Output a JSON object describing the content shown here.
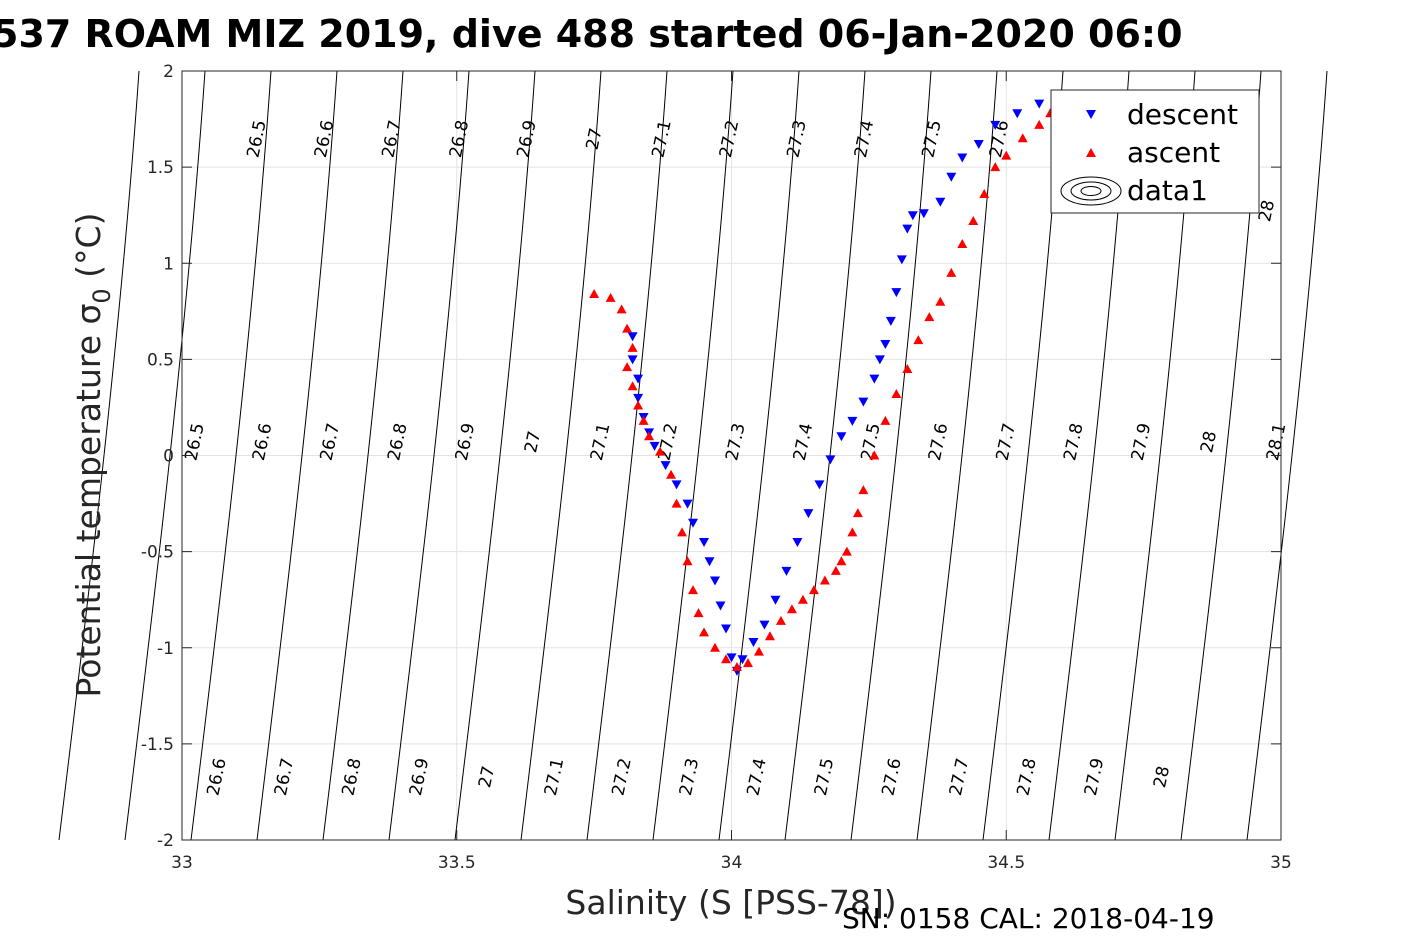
{
  "chart_data": {
    "type": "scatter",
    "title": "537 ROAM MIZ 2019, dive 488 started 06-Jan-2020 06:0",
    "xlabel": "Salinity (S [PSS-78])",
    "ylabel": "Potential temperature σ",
    "ylabel_subscript": "0",
    "ylabel_unit": " (°C)",
    "xlim": [
      33,
      35
    ],
    "ylim": [
      -2,
      2
    ],
    "xticks": [
      33,
      33.5,
      34,
      34.5,
      35
    ],
    "xtick_labels": [
      "33",
      "33.5",
      "34",
      "34.5",
      "35"
    ],
    "yticks": [
      -2,
      -1.5,
      -1,
      -0.5,
      0,
      0.5,
      1,
      1.5,
      2
    ],
    "ytick_labels": [
      "-2",
      "-1.5",
      "-1",
      "-0.5",
      "0",
      "0.5",
      "1",
      "1.5",
      "2"
    ],
    "grid": true,
    "legend_position": "top-right",
    "footer": "SN: 0158  CAL: 2018-04-19",
    "series": [
      {
        "name": "descent",
        "marker": "triangle-down",
        "color": "#0000ff",
        "x": [
          33.82,
          33.82,
          33.83,
          33.83,
          33.84,
          33.85,
          33.86,
          33.88,
          33.9,
          33.92,
          33.93,
          33.95,
          33.96,
          33.97,
          33.98,
          33.99,
          34.0,
          34.01,
          34.02,
          34.04,
          34.06,
          34.08,
          34.1,
          34.12,
          34.14,
          34.16,
          34.18,
          34.2,
          34.22,
          34.24,
          34.26,
          34.27,
          34.28,
          34.29,
          34.3,
          34.31,
          34.32,
          34.33,
          34.35,
          34.38,
          34.4,
          34.42,
          34.45,
          34.48,
          34.52,
          34.56,
          34.59
        ],
        "y": [
          0.62,
          0.5,
          0.4,
          0.3,
          0.2,
          0.12,
          0.05,
          -0.05,
          -0.15,
          -0.25,
          -0.35,
          -0.45,
          -0.55,
          -0.65,
          -0.78,
          -0.9,
          -1.05,
          -1.12,
          -1.06,
          -0.97,
          -0.88,
          -0.75,
          -0.6,
          -0.45,
          -0.3,
          -0.15,
          -0.02,
          0.1,
          0.18,
          0.28,
          0.4,
          0.5,
          0.58,
          0.7,
          0.85,
          1.02,
          1.18,
          1.25,
          1.26,
          1.32,
          1.45,
          1.55,
          1.62,
          1.72,
          1.78,
          1.83,
          1.86
        ]
      },
      {
        "name": "ascent",
        "marker": "triangle-up",
        "color": "#ff0000",
        "x": [
          33.75,
          33.78,
          33.8,
          33.81,
          33.82,
          33.81,
          33.82,
          33.83,
          33.84,
          33.85,
          33.87,
          33.89,
          33.9,
          33.91,
          33.92,
          33.93,
          33.94,
          33.95,
          33.97,
          33.99,
          34.01,
          34.03,
          34.05,
          34.07,
          34.09,
          34.11,
          34.13,
          34.15,
          34.17,
          34.19,
          34.2,
          34.21,
          34.22,
          34.23,
          34.24,
          34.26,
          34.28,
          34.3,
          34.32,
          34.34,
          34.36,
          34.38,
          34.4,
          34.42,
          34.44,
          34.46,
          34.48,
          34.5,
          34.53,
          34.56,
          34.58
        ],
        "y": [
          0.84,
          0.82,
          0.76,
          0.66,
          0.56,
          0.46,
          0.36,
          0.26,
          0.18,
          0.1,
          0.02,
          -0.1,
          -0.25,
          -0.4,
          -0.55,
          -0.7,
          -0.82,
          -0.92,
          -1.0,
          -1.06,
          -1.1,
          -1.08,
          -1.02,
          -0.94,
          -0.86,
          -0.8,
          -0.75,
          -0.7,
          -0.65,
          -0.6,
          -0.55,
          -0.5,
          -0.4,
          -0.3,
          -0.18,
          0.0,
          0.18,
          0.32,
          0.45,
          0.6,
          0.72,
          0.8,
          0.95,
          1.1,
          1.22,
          1.36,
          1.5,
          1.56,
          1.65,
          1.72,
          1.78
        ]
      },
      {
        "name": "data1",
        "marker": "contour",
        "color": "#000000"
      }
    ],
    "isopycnal_labels": {
      "top": [
        "26.5",
        "26.6",
        "26.7",
        "26.8",
        "26.9",
        "27",
        "27.1",
        "27.2",
        "27.3",
        "27.4",
        "27.5",
        "27.6",
        "28"
      ],
      "middle": [
        "26.5",
        "26.6",
        "26.7",
        "26.8",
        "26.9",
        "27",
        "27.1",
        "27.2",
        "27.3",
        "27.4",
        "27.5",
        "27.6",
        "27.7",
        "27.8",
        "27.9",
        "28",
        "28.1"
      ],
      "bottom": [
        "26.6",
        "26.7",
        "26.8",
        "26.9",
        "27",
        "27.1",
        "27.2",
        "27.3",
        "27.4",
        "27.5",
        "27.6",
        "27.7",
        "27.8",
        "27.9",
        "28"
      ]
    }
  }
}
